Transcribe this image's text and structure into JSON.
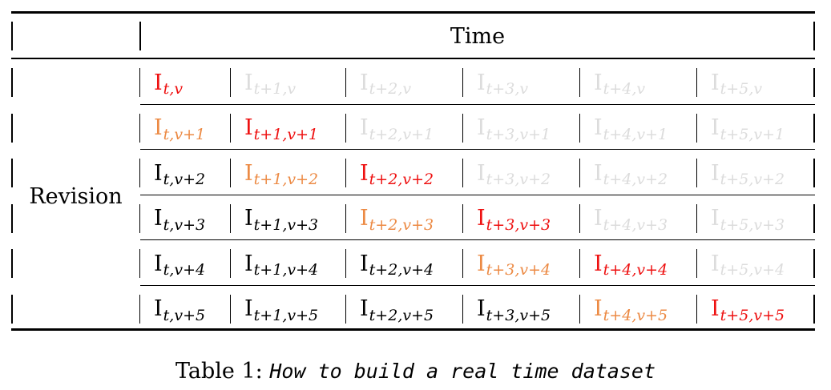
{
  "table": {
    "header": {
      "time_label": "Time"
    },
    "row_label": "Revision",
    "rows": [
      [
        {
          "base": "I",
          "sub": "t,v",
          "color": "red"
        },
        {
          "base": "I",
          "sub": "t+1,v",
          "color": "gray"
        },
        {
          "base": "I",
          "sub": "t+2,v",
          "color": "gray"
        },
        {
          "base": "I",
          "sub": "t+3,v",
          "color": "gray"
        },
        {
          "base": "I",
          "sub": "t+4,v",
          "color": "gray"
        },
        {
          "base": "I",
          "sub": "t+5,v",
          "color": "gray"
        }
      ],
      [
        {
          "base": "I",
          "sub": "t,v+1",
          "color": "orange"
        },
        {
          "base": "I",
          "sub": "t+1,v+1",
          "color": "red"
        },
        {
          "base": "I",
          "sub": "t+2,v+1",
          "color": "gray"
        },
        {
          "base": "I",
          "sub": "t+3,v+1",
          "color": "gray"
        },
        {
          "base": "I",
          "sub": "t+4,v+1",
          "color": "gray"
        },
        {
          "base": "I",
          "sub": "t+5,v+1",
          "color": "gray"
        }
      ],
      [
        {
          "base": "I",
          "sub": "t,v+2",
          "color": "black"
        },
        {
          "base": "I",
          "sub": "t+1,v+2",
          "color": "orange"
        },
        {
          "base": "I",
          "sub": "t+2,v+2",
          "color": "red"
        },
        {
          "base": "I",
          "sub": "t+3,v+2",
          "color": "gray"
        },
        {
          "base": "I",
          "sub": "t+4,v+2",
          "color": "gray"
        },
        {
          "base": "I",
          "sub": "t+5,v+2",
          "color": "gray"
        }
      ],
      [
        {
          "base": "I",
          "sub": "t,v+3",
          "color": "black"
        },
        {
          "base": "I",
          "sub": "t+1,v+3",
          "color": "black"
        },
        {
          "base": "I",
          "sub": "t+2,v+3",
          "color": "orange"
        },
        {
          "base": "I",
          "sub": "t+3,v+3",
          "color": "red"
        },
        {
          "base": "I",
          "sub": "t+4,v+3",
          "color": "gray"
        },
        {
          "base": "I",
          "sub": "t+5,v+3",
          "color": "gray"
        }
      ],
      [
        {
          "base": "I",
          "sub": "t,v+4",
          "color": "black"
        },
        {
          "base": "I",
          "sub": "t+1,v+4",
          "color": "black"
        },
        {
          "base": "I",
          "sub": "t+2,v+4",
          "color": "black"
        },
        {
          "base": "I",
          "sub": "t+3,v+4",
          "color": "orange"
        },
        {
          "base": "I",
          "sub": "t+4,v+4",
          "color": "red"
        },
        {
          "base": "I",
          "sub": "t+5,v+4",
          "color": "gray"
        }
      ],
      [
        {
          "base": "I",
          "sub": "t,v+5",
          "color": "black"
        },
        {
          "base": "I",
          "sub": "t+1,v+5",
          "color": "black"
        },
        {
          "base": "I",
          "sub": "t+2,v+5",
          "color": "black"
        },
        {
          "base": "I",
          "sub": "t+3,v+5",
          "color": "black"
        },
        {
          "base": "I",
          "sub": "t+4,v+5",
          "color": "orange"
        },
        {
          "base": "I",
          "sub": "t+5,v+5",
          "color": "red"
        }
      ]
    ],
    "colors": {
      "red": "#ee1111",
      "orange": "#ec8a44",
      "gray": "#dcdcdc",
      "black": "#000000"
    }
  },
  "caption": {
    "prefix": "Table 1: ",
    "text": "How to build a real time dataset"
  }
}
